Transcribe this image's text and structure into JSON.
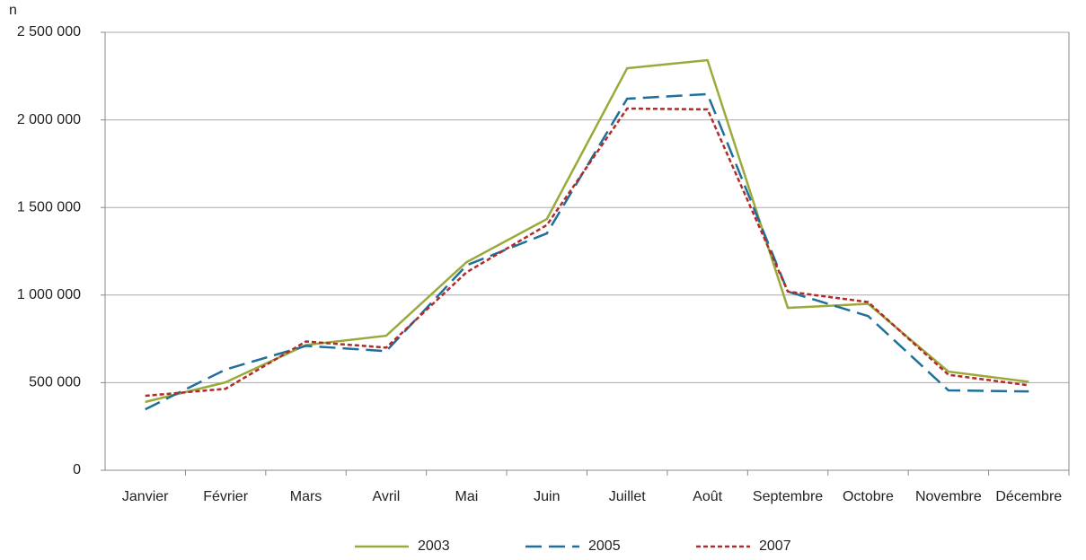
{
  "chart_data": {
    "type": "line",
    "y_label": "n",
    "categories": [
      "Janvier",
      "Février",
      "Mars",
      "Avril",
      "Mai",
      "Juin",
      "Juillet",
      "Août",
      "Septembre",
      "Octobre",
      "Novembre",
      "Décembre"
    ],
    "series": [
      {
        "name": "2003",
        "color": "#9aaa3a",
        "values": [
          390000,
          502000,
          715000,
          768000,
          1188000,
          1434000,
          2295000,
          2341000,
          927000,
          950000,
          563000,
          505000
        ]
      },
      {
        "name": "2005",
        "color": "#1f6f9a",
        "values": [
          348000,
          575000,
          710000,
          680000,
          1170000,
          1352000,
          2121000,
          2147000,
          1020000,
          880000,
          456000,
          450000
        ]
      },
      {
        "name": "2007",
        "color": "#b22a2a",
        "values": [
          425000,
          465000,
          735000,
          700000,
          1130000,
          1400000,
          2065000,
          2060000,
          1020000,
          960000,
          545000,
          485000
        ]
      }
    ],
    "ylim": [
      0,
      2500000
    ],
    "yticks": [
      0,
      {
        "value": 500000,
        "label": "500 000"
      },
      {
        "value": 1000000,
        "label": "1 000 000"
      },
      {
        "value": 1500000,
        "label": "1 500 000"
      },
      {
        "value": 2000000,
        "label": "2 000 000"
      },
      {
        "value": 2500000,
        "label": "2 500 000"
      }
    ],
    "grid": true,
    "legend": "bottom"
  }
}
